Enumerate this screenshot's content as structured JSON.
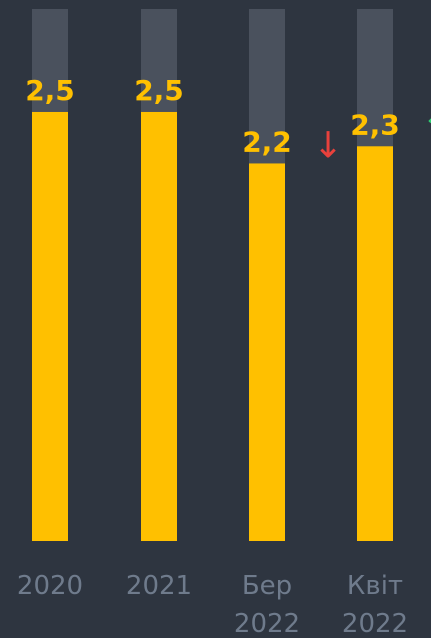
{
  "chart_data": {
    "type": "bar",
    "categories": [
      [
        "2020"
      ],
      [
        "2021"
      ],
      [
        "Бер",
        "2022"
      ],
      [
        "Квіт",
        "2022"
      ]
    ],
    "values": [
      2.5,
      2.5,
      2.2,
      2.3
    ],
    "value_labels": [
      "2,5",
      "2,5",
      "2,2",
      "2,3"
    ],
    "trend_markers": [
      {
        "index": 2,
        "symbol": "↓",
        "color": "#e8413c"
      },
      {
        "index": 3,
        "symbol": "↑",
        "color": "#2ecc71"
      }
    ],
    "ylim": [
      0,
      3.1
    ],
    "grid": false,
    "colors": {
      "background": "#2e3540",
      "track": "#4a515d",
      "bar": "#ffc000",
      "category_text": "#6f7b8c"
    }
  }
}
